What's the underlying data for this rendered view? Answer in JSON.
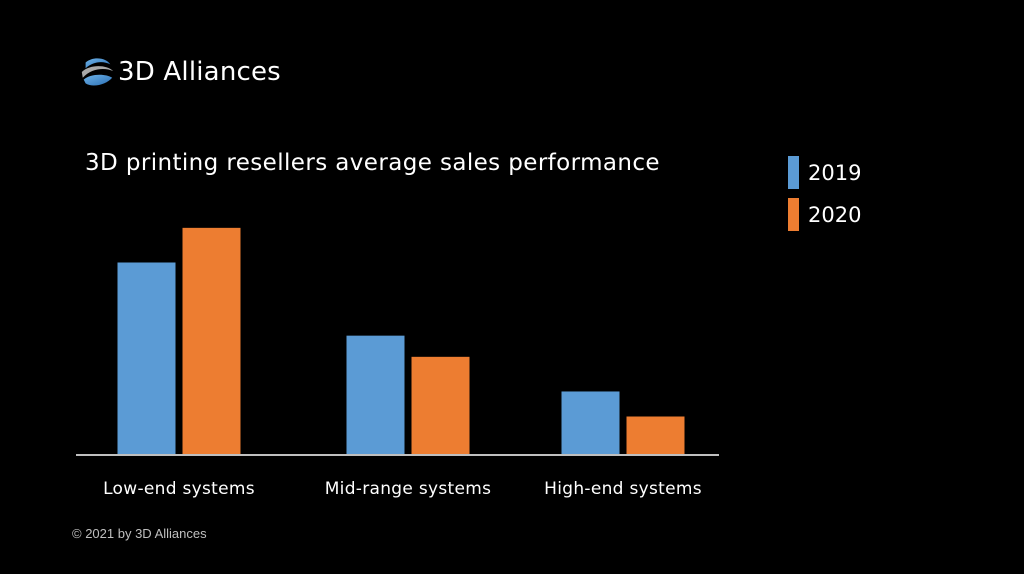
{
  "logo": {
    "text": "3D Alliances",
    "icon": "3d-alliances-globe-logo"
  },
  "footer": {
    "copyright": "© 2021 by 3D Alliances"
  },
  "colors": {
    "background": "#000000",
    "series_2019": "#5b9bd5",
    "series_2020": "#ed7d31",
    "axis": "#bfbfbf"
  },
  "chart_data": {
    "type": "bar",
    "title": "3D printing resellers average sales performance",
    "categories": [
      "Low-end systems",
      "Mid-range systems",
      "High-end systems"
    ],
    "series": [
      {
        "name": "2019",
        "values": [
          100,
          62,
          33
        ]
      },
      {
        "name": "2020",
        "values": [
          118,
          51,
          20
        ]
      }
    ],
    "xlabel": "",
    "ylabel": "",
    "y_axis_visible": false,
    "ylim": [
      0,
      120
    ],
    "grid": false,
    "legend": "right"
  }
}
